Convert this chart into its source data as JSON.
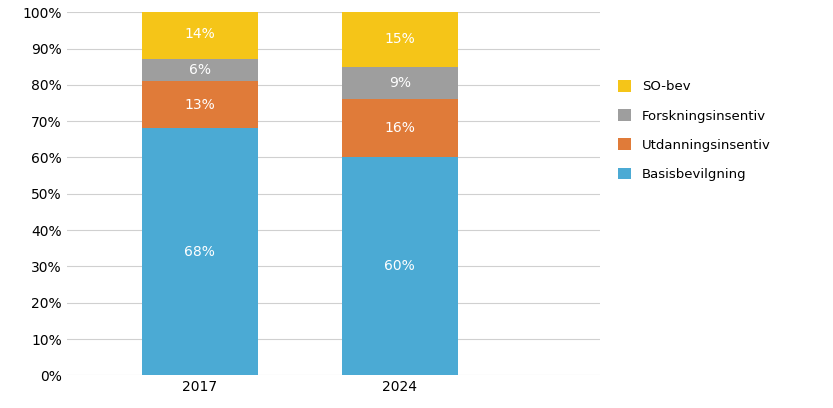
{
  "categories": [
    "2017",
    "2024"
  ],
  "series": [
    {
      "label": "Basisbevilgning",
      "values": [
        68,
        60
      ],
      "color": "#4BAAD4"
    },
    {
      "label": "Utdanningsinsentiv",
      "values": [
        13,
        16
      ],
      "color": "#E07B39"
    },
    {
      "label": "Forskningsinsentiv",
      "values": [
        6,
        9
      ],
      "color": "#9E9E9E"
    },
    {
      "label": "SO-bev",
      "values": [
        14,
        15
      ],
      "color": "#F5C518"
    }
  ],
  "ylim": [
    0,
    100
  ],
  "yticks": [
    0,
    10,
    20,
    30,
    40,
    50,
    60,
    70,
    80,
    90,
    100
  ],
  "ytick_labels": [
    "0%",
    "10%",
    "20%",
    "30%",
    "40%",
    "50%",
    "60%",
    "70%",
    "80%",
    "90%",
    "100%"
  ],
  "bar_width": 0.35,
  "x_positions": [
    0.3,
    0.9
  ],
  "xlim": [
    -0.1,
    1.5
  ],
  "background_color": "#FFFFFF",
  "grid_color": "#D0D0D0",
  "label_fontsize": 10,
  "tick_fontsize": 10,
  "legend_fontsize": 9.5
}
